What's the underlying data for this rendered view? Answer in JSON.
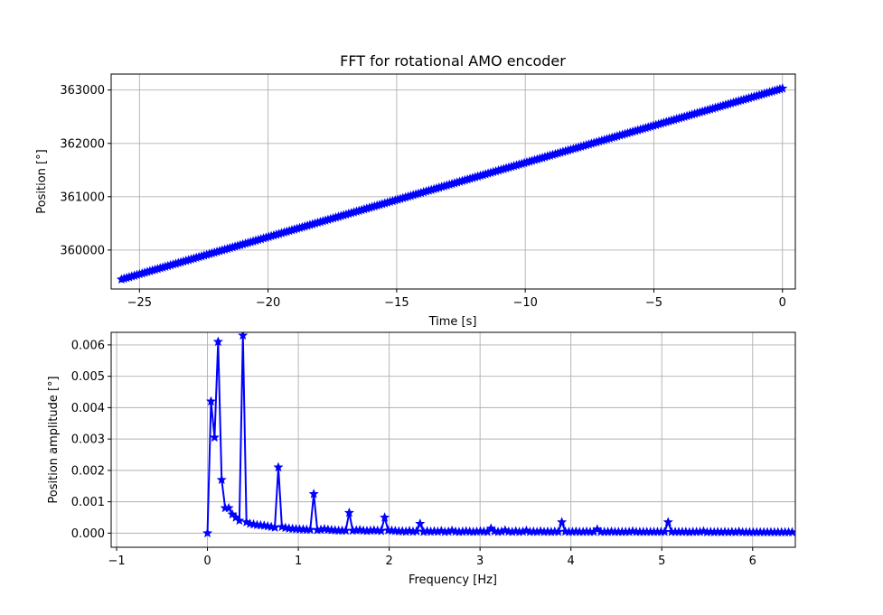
{
  "chart_data": [
    {
      "type": "line",
      "title": "FFT for rotational AMO encoder",
      "xlabel": "Time [s]",
      "ylabel": "Position [°]",
      "xlim": [
        -26.1,
        0.5
      ],
      "ylim": [
        359270,
        363300
      ],
      "xticks": [
        -25,
        -20,
        -15,
        -10,
        -5,
        0
      ],
      "xtick_labels": [
        "−25",
        "−20",
        "−15",
        "−10",
        "−5",
        "0"
      ],
      "yticks": [
        360000,
        361000,
        362000,
        363000
      ],
      "ytick_labels": [
        "360000",
        "361000",
        "362000",
        "363000"
      ],
      "grid": true,
      "marker": "star",
      "color": "#0000ff",
      "series": [
        {
          "x_start": -25.7,
          "x_end": 0.0,
          "y_start": 359450,
          "y_end": 363030,
          "n_points": 257
        }
      ]
    },
    {
      "type": "line",
      "title": "",
      "xlabel": "Frequency [Hz]",
      "ylabel": "Position amplitude [°]",
      "xlim": [
        -1.06,
        6.47
      ],
      "ylim": [
        -0.00045,
        0.0064
      ],
      "xticks": [
        -1,
        0,
        1,
        2,
        3,
        4,
        5,
        6
      ],
      "xtick_labels": [
        "−1",
        "0",
        "1",
        "2",
        "3",
        "4",
        "5",
        "6"
      ],
      "yticks": [
        0.0,
        0.001,
        0.002,
        0.003,
        0.004,
        0.005,
        0.006
      ],
      "ytick_labels": [
        "0.000",
        "0.001",
        "0.002",
        "0.003",
        "0.004",
        "0.005",
        "0.006"
      ],
      "grid": true,
      "marker": "star",
      "color": "#0000ff",
      "series": [
        {
          "x_step": 0.039,
          "values": [
            0.0,
            0.0042,
            0.00305,
            0.0061,
            0.0017,
            0.0008,
            0.0008,
            0.0006,
            0.0005,
            0.0004,
            0.0063,
            0.00035,
            0.0003,
            0.00028,
            0.00026,
            0.00025,
            0.00024,
            0.00022,
            0.0002,
            0.00018,
            0.0021,
            0.0002,
            0.00017,
            0.00015,
            0.00014,
            0.00013,
            0.00012,
            0.00012,
            0.00011,
            0.00011,
            0.00125,
            0.0001,
            0.00011,
            0.00013,
            0.00011,
            0.0001,
            9e-05,
            8e-05,
            8e-05,
            8e-05,
            0.00065,
            8e-05,
            9e-05,
            0.0001,
            8e-05,
            7e-05,
            8e-05,
            9e-05,
            8e-05,
            7e-05,
            0.0005,
            9e-05,
            8e-05,
            7e-05,
            6e-05,
            6e-05,
            5e-05,
            7e-05,
            5e-05,
            6e-05,
            0.0003,
            4e-05,
            6e-05,
            5e-05,
            6e-05,
            5e-05,
            7e-05,
            4e-05,
            5e-05,
            8e-05,
            5e-05,
            4e-05,
            5e-05,
            6e-05,
            5e-05,
            4e-05,
            5e-05,
            6e-05,
            5e-05,
            4e-05,
            0.00015,
            6e-05,
            4e-05,
            5e-05,
            9e-05,
            5e-05,
            4e-05,
            6e-05,
            4e-05,
            5e-05,
            8e-05,
            4e-05,
            5e-05,
            4e-05,
            6e-05,
            4e-05,
            5e-05,
            4e-05,
            5e-05,
            4e-05,
            0.00035,
            5e-05,
            4e-05,
            4e-05,
            5e-05,
            4e-05,
            4e-05,
            5e-05,
            4e-05,
            4e-05,
            0.00012,
            4e-05,
            4e-05,
            4e-05,
            5e-05,
            4e-05,
            4e-05,
            4e-05,
            4e-05,
            4e-05,
            6e-05,
            4e-05,
            4e-05,
            4e-05,
            4e-05,
            4e-05,
            4e-05,
            4e-05,
            4e-05,
            4e-05,
            0.00035,
            4e-05,
            4e-05,
            4e-05,
            4e-05,
            4e-05,
            3e-05,
            4e-05,
            4e-05,
            4e-05,
            6e-05,
            3e-05,
            4e-05,
            3e-05,
            4e-05,
            3e-05,
            4e-05,
            3e-05,
            4e-05,
            3e-05,
            5e-05,
            3e-05,
            3e-05,
            3e-05,
            3e-05,
            3e-05,
            3e-05,
            3e-05,
            3e-05,
            3e-05,
            3e-05,
            3e-05,
            3e-05,
            3e-05,
            3e-05,
            3e-05
          ]
        }
      ]
    }
  ]
}
